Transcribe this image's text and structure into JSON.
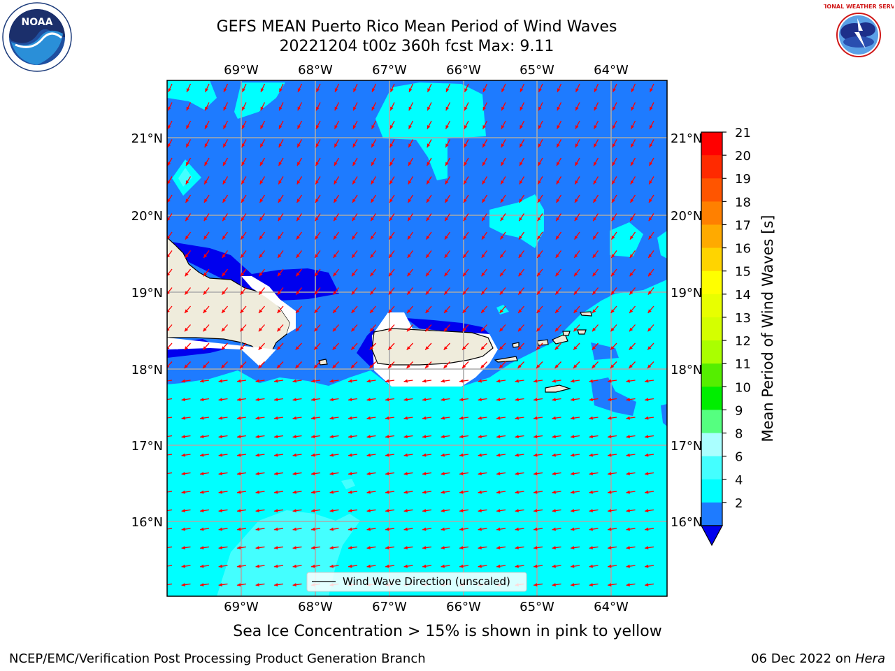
{
  "header": {
    "title_line1": "GEFS MEAN Puerto Rico Mean Period of Wind Waves",
    "title_line2": "20221204 t00z 360h fcst   Max: 9.11"
  },
  "map": {
    "lon_ticks": [
      "69°W",
      "68°W",
      "67°W",
      "66°W",
      "65°W",
      "64°W"
    ],
    "lat_ticks": [
      "21°N",
      "20°N",
      "19°N",
      "18°N",
      "17°N",
      "16°N"
    ],
    "legend_label": "Wind Wave Direction (unscaled)",
    "arrow_color": "#ff0000",
    "land_color": "#efecdc",
    "ocean_levels": {
      "lvl_2_4": "#1e7bff",
      "lvl_4_6": "#00ffff",
      "lvl_6_8": "#44ffff",
      "lvl_below_2": "#0000ee"
    }
  },
  "colorbar": {
    "label": "Mean Period of Wind Waves [s]",
    "ticks": [
      "21",
      "20",
      "19",
      "18",
      "17",
      "16",
      "15",
      "14",
      "13",
      "12",
      "11",
      "10",
      "9",
      "8",
      "6",
      "4",
      "2"
    ],
    "colors": [
      "#ff0000",
      "#ff2a00",
      "#ff5500",
      "#ff8000",
      "#ffaa00",
      "#ffd400",
      "#ffff00",
      "#e8ff00",
      "#d4ff00",
      "#aaff00",
      "#55ee00",
      "#00ee00",
      "#55ff80",
      "#aaffff",
      "#44ffff",
      "#00ffff",
      "#1e7bff"
    ],
    "under_color": "#0000ee"
  },
  "note": "Sea Ice Concentration > 15% is shown in pink to yellow",
  "footer": {
    "left": "NCEP/EMC/Verification Post Processing Product Generation Branch",
    "right_date": "06 Dec 2022 on ",
    "right_host": "Hera"
  },
  "logos": {
    "noaa_text": "NOAA",
    "nws_text": "NATIONAL WEATHER SERVICE"
  }
}
